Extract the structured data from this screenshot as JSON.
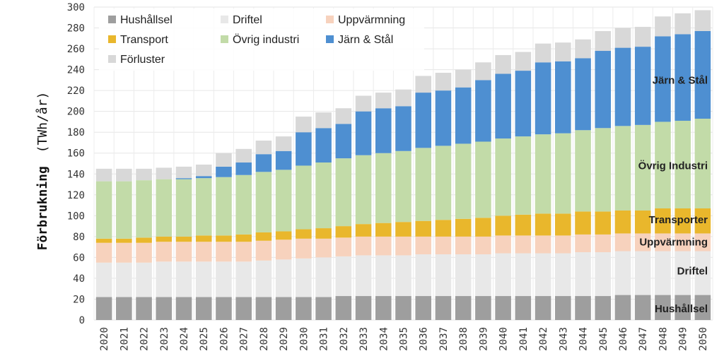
{
  "chart_data": {
    "type": "bar",
    "stacked": true,
    "ylabel_main": "Förbrukning",
    "ylabel_unit": "(TWh/år)",
    "ylim": [
      0,
      300
    ],
    "yticks": [
      0,
      20,
      40,
      60,
      80,
      100,
      120,
      140,
      160,
      180,
      200,
      220,
      240,
      260,
      280,
      300
    ],
    "grid": true,
    "legend_position": "top-left",
    "categories": [
      "2020",
      "2021",
      "2022",
      "2023",
      "2024",
      "2025",
      "2026",
      "2027",
      "2028",
      "2029",
      "2030",
      "2031",
      "2032",
      "2033",
      "2034",
      "2035",
      "2036",
      "2037",
      "2038",
      "2039",
      "2040",
      "2041",
      "2042",
      "2043",
      "2044",
      "2045",
      "2046",
      "2047",
      "2048",
      "2049",
      "2050"
    ],
    "series": [
      {
        "name": "Hushållsel",
        "color": "#9e9e9e",
        "values": [
          22,
          22,
          22,
          22,
          22,
          22,
          22,
          22,
          22,
          22,
          22,
          22,
          23,
          23,
          23,
          23,
          23,
          23,
          23,
          23,
          23,
          23,
          23,
          23,
          23,
          23,
          24,
          24,
          24,
          24,
          24
        ]
      },
      {
        "name": "Driftel",
        "color": "#e8e8e8",
        "values": [
          33,
          33,
          33,
          34,
          34,
          34,
          34,
          34,
          35,
          36,
          37,
          38,
          38,
          39,
          39,
          39,
          40,
          40,
          40,
          40,
          41,
          41,
          41,
          41,
          42,
          42,
          42,
          42,
          42,
          42,
          42
        ]
      },
      {
        "name": "Uppvärmning",
        "color": "#f7d2bd",
        "values": [
          19,
          19,
          19,
          19,
          19,
          19,
          19,
          19,
          19,
          19,
          19,
          18,
          18,
          18,
          18,
          18,
          17,
          17,
          17,
          17,
          17,
          17,
          17,
          17,
          17,
          17,
          17,
          17,
          17,
          17,
          17
        ]
      },
      {
        "name": "Transport",
        "color": "#e9b72c",
        "values": [
          4,
          4,
          5,
          5,
          5,
          6,
          6,
          7,
          8,
          8,
          9,
          10,
          11,
          12,
          13,
          14,
          15,
          16,
          17,
          18,
          19,
          20,
          21,
          21,
          22,
          22,
          22,
          22,
          24,
          24,
          24
        ]
      },
      {
        "name": "Övrig industri",
        "color": "#c2dba8",
        "values": [
          55,
          55,
          55,
          55,
          55,
          55,
          56,
          57,
          58,
          59,
          61,
          63,
          65,
          66,
          67,
          68,
          70,
          71,
          72,
          73,
          74,
          75,
          76,
          77,
          78,
          80,
          81,
          82,
          83,
          84,
          86
        ]
      },
      {
        "name": "Järn & Stål",
        "color": "#4e8fd1",
        "values": [
          0,
          0,
          0,
          0,
          1,
          2,
          10,
          12,
          17,
          18,
          32,
          33,
          33,
          42,
          43,
          43,
          53,
          53,
          54,
          59,
          62,
          63,
          69,
          69,
          69,
          74,
          75,
          75,
          82,
          83,
          84
        ]
      },
      {
        "name": "Förluster",
        "color": "#d8d8d8",
        "values": [
          12,
          12,
          11,
          11,
          11,
          11,
          13,
          13,
          13,
          14,
          15,
          15,
          15,
          15,
          15,
          16,
          16,
          17,
          17,
          17,
          18,
          18,
          18,
          18,
          18,
          19,
          19,
          19,
          19,
          20,
          20
        ]
      }
    ],
    "annotations": [
      {
        "text": "Järn & Stål",
        "y": 230
      },
      {
        "text": "Övrig Industri",
        "y": 148
      },
      {
        "text": "Transporter",
        "y": 96
      },
      {
        "text": "Uppvärmning",
        "y": 75
      },
      {
        "text": "Driftel",
        "y": 47
      },
      {
        "text": "Hushållsel",
        "y": 11
      }
    ]
  }
}
